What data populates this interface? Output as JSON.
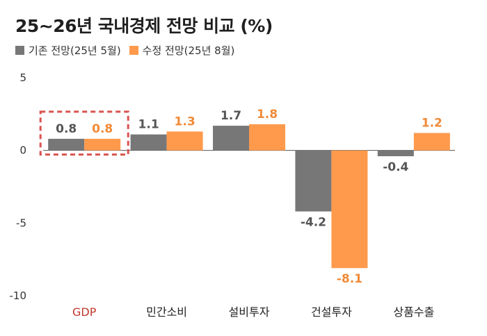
{
  "chart_data": {
    "type": "bar",
    "title": "25~26년 국내경제 전망 비교 (%)",
    "categories": [
      "GDP",
      "민간소비",
      "설비투자",
      "건설투자",
      "상품수출"
    ],
    "series": [
      {
        "name": "기존 전망(25년 5월)",
        "values": [
          0.8,
          1.1,
          1.7,
          -4.2,
          -0.4
        ],
        "color": "#777777",
        "label_color": "#555555"
      },
      {
        "name": "수정 전망(25년 8월)",
        "values": [
          0.8,
          1.3,
          1.8,
          -8.1,
          1.2
        ],
        "color": "#ff9a4d",
        "label_color": "#f08a38"
      }
    ],
    "value_labels": [
      [
        "0.8",
        "1.1",
        "1.7",
        "-4.2",
        "-0.4"
      ],
      [
        "0.8",
        "1.3",
        "1.8",
        "-8.1",
        "1.2"
      ]
    ],
    "y_ticks": [
      "5",
      "0",
      "-5",
      "-10"
    ],
    "ylim": [
      -10,
      5
    ],
    "xlabel": "",
    "ylabel": "",
    "legend_position": "top-left",
    "highlight_category": "GDP",
    "highlight_color": "#d9534f"
  }
}
